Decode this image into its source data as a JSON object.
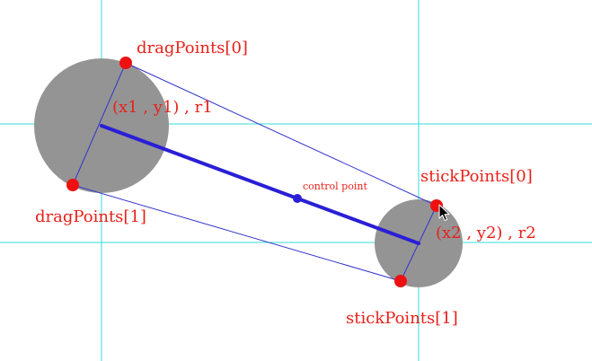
{
  "colors": {
    "guide": "#33dddd",
    "circle_fill": "#949494",
    "thin_line": "#3333cc",
    "thick_line": "#2a1fd6",
    "point_red": "#ee1111",
    "label_red": "#e8201a"
  },
  "labels": {
    "drag_point_0": "dragPoints[0]",
    "drag_point_1": "dragPoints[1]",
    "stick_point_0": "stickPoints[0]",
    "stick_point_1": "stickPoints[1]",
    "circle_1": "(x1 , y1) , r1",
    "circle_2": "(x2 , y2) , r2",
    "control_point": "control point"
  },
  "icons": {
    "cursor": "mouse-pointer-icon"
  }
}
